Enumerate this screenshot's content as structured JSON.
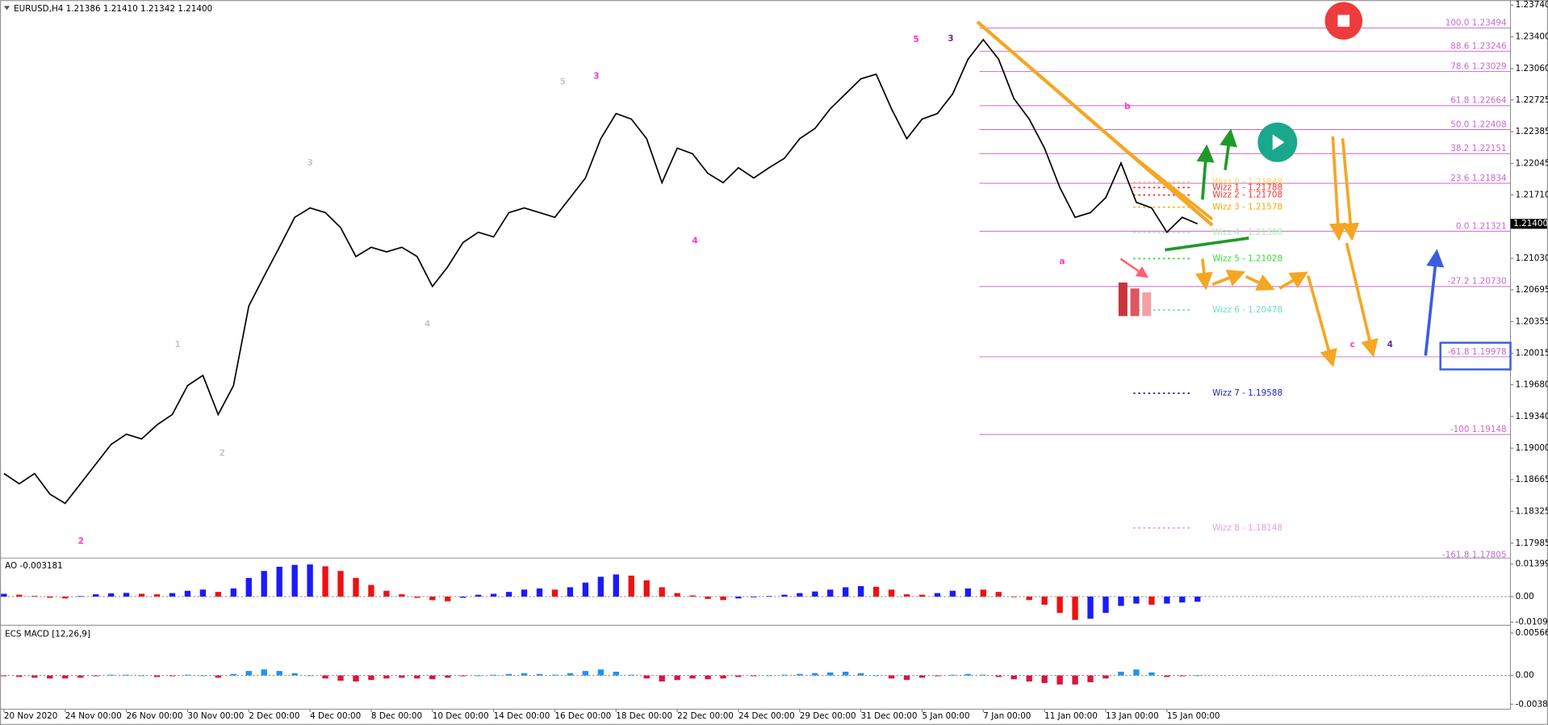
{
  "chart_data": [
    {
      "type": "line",
      "title": "EURUSD,H4  1.21386 1.21410 1.21342 1.21400",
      "categories": [
        "20 Nov 2020",
        null,
        null,
        null,
        "24 Nov 00:00",
        null,
        null,
        null,
        "26 Nov 00:00",
        null,
        null,
        null,
        "30 Nov 00:00",
        null,
        null,
        null,
        "2 Dec 00:00",
        null,
        null,
        null,
        "4 Dec 00:00",
        null,
        null,
        null,
        "8 Dec 00:00",
        null,
        null,
        null,
        "10 Dec 00:00",
        null,
        null,
        null,
        "14 Dec 00:00",
        null,
        null,
        null,
        "16 Dec 00:00",
        null,
        null,
        null,
        "18 Dec 00:00",
        null,
        null,
        null,
        "22 Dec 00:00",
        null,
        null,
        null,
        "24 Dec 00:00",
        null,
        null,
        null,
        "29 Dec 00:00",
        null,
        null,
        null,
        "31 Dec 00:00",
        null,
        null,
        null,
        "5 Jan 00:00",
        null,
        null,
        null,
        "7 Jan 00:00",
        null,
        null,
        null,
        "11 Jan 00:00",
        null,
        null,
        null,
        "13 Jan 00:00",
        null,
        null,
        null,
        "15 Jan 00:00",
        null,
        null
      ],
      "series": [
        {
          "color": "#000000",
          "values": [
            1.1873,
            1.1862,
            1.1873,
            1.1851,
            1.1841,
            1.1862,
            1.1883,
            1.1904,
            1.1915,
            1.191,
            1.1925,
            1.1936,
            1.1967,
            1.1978,
            1.1936,
            1.1967,
            1.2052,
            1.2084,
            1.2115,
            1.2147,
            1.2157,
            1.2152,
            1.2136,
            1.2105,
            1.2115,
            1.211,
            1.2115,
            1.2105,
            1.2073,
            1.2094,
            1.212,
            1.2131,
            1.2126,
            1.2152,
            1.2157,
            1.2152,
            1.2147,
            1.2168,
            1.2189,
            1.2231,
            1.2258,
            1.2252,
            1.2231,
            1.2184,
            1.2221,
            1.2215,
            1.2194,
            1.2184,
            1.22,
            1.2189,
            1.22,
            1.221,
            1.2231,
            1.2242,
            1.2263,
            1.2279,
            1.2295,
            1.23,
            1.2263,
            1.2231,
            1.2252,
            1.2258,
            1.2279,
            1.2316,
            1.2337,
            1.2316,
            1.2274,
            1.2252,
            1.2221,
            1.2179,
            1.2147,
            1.2152,
            1.2168,
            1.2205,
            1.2163,
            1.2157,
            1.2131,
            1.2147,
            1.214
          ]
        }
      ],
      "ylim": [
        1.17826,
        1.23793
      ],
      "yticks": [
        {
          "value": 1.2374,
          "label": "1.23740"
        },
        {
          "value": 1.234,
          "label": "1.23400"
        },
        {
          "value": 1.2306,
          "label": "1.23060"
        },
        {
          "value": 1.22725,
          "label": "1.22725"
        },
        {
          "value": 1.22385,
          "label": "1.22385"
        },
        {
          "value": 1.22045,
          "label": "1.22045"
        },
        {
          "value": 1.2171,
          "label": "1.21710"
        },
        {
          "value": 1.2103,
          "label": "1.21030"
        },
        {
          "value": 1.20695,
          "label": "1.20695"
        },
        {
          "value": 1.20355,
          "label": "1.20355"
        },
        {
          "value": 1.20015,
          "label": "1.20015"
        },
        {
          "value": 1.1968,
          "label": "1.19680"
        },
        {
          "value": 1.1934,
          "label": "1.19340"
        },
        {
          "value": 1.19,
          "label": "1.19000"
        },
        {
          "value": 1.18665,
          "label": "1.18665"
        },
        {
          "value": 1.18325,
          "label": "1.18325"
        },
        {
          "value": 1.17985,
          "label": "1.17985"
        }
      ],
      "last_price": {
        "value": 1.214,
        "label": "1.21400"
      },
      "fib_color": "#cc66cc",
      "fib_levels": [
        {
          "value": 1.23494,
          "label": "100.0 1.23494"
        },
        {
          "value": 1.23246,
          "label": "88.6 1.23246"
        },
        {
          "value": 1.23029,
          "label": "78.6 1.23029"
        },
        {
          "value": 1.22664,
          "label": "61.8 1.22664"
        },
        {
          "value": 1.22408,
          "label": "50.0 1.22408"
        },
        {
          "value": 1.22151,
          "label": "38.2 1.22151"
        },
        {
          "value": 1.21834,
          "label": "23.6 1.21834"
        },
        {
          "value": 1.21321,
          "label": "0.0 1.21321"
        },
        {
          "value": 1.2073,
          "label": "-27.2 1.20730"
        },
        {
          "value": 1.19978,
          "label": "-61.8 1.19978"
        },
        {
          "value": 1.19148,
          "label": "-100 1.19148"
        },
        {
          "value": 1.17805,
          "label": "-161.8 1.17805"
        }
      ],
      "levels": [
        {
          "value": 1.21848,
          "label": "Wizz 0 - 1.21848",
          "color": "#f0dc50"
        },
        {
          "value": 1.21788,
          "label": "Wizz 1 - 1.21788",
          "color": "#ff3030"
        },
        {
          "value": 1.21708,
          "label": "Wizz 2 - 1.21708",
          "color": "#ff3030"
        },
        {
          "value": 1.21578,
          "label": "Wizz 3 - 1.21578",
          "color": "#ffa500"
        },
        {
          "value": 1.21308,
          "label": "Wizz 4 - 1.21308",
          "color": "#a8eea8"
        },
        {
          "value": 1.21028,
          "label": "Wizz 5 - 1.21028",
          "color": "#33dd33"
        },
        {
          "value": 1.20478,
          "label": "Wizz 6 - 1.20478",
          "color": "#66e0c8"
        },
        {
          "value": 1.19588,
          "label": "Wizz 7 - 1.19588",
          "color": "#2222cc"
        },
        {
          "value": 1.18148,
          "label": "Wizz 8 - 1.18148",
          "color": "#e8a0e0"
        }
      ],
      "annotations": [
        {
          "text": "1",
          "color": "#c8c8c8"
        },
        {
          "text": "2",
          "color": "#c8c8c8"
        },
        {
          "text": "3",
          "color": "#c8c8c8"
        },
        {
          "text": "4",
          "color": "#c8c8c8"
        },
        {
          "text": "5",
          "color": "#c8c8c8"
        },
        {
          "text": "3",
          "color": "#ff33cc"
        },
        {
          "text": "4",
          "color": "#ff33cc"
        },
        {
          "text": "5",
          "color": "#ff33cc"
        },
        {
          "text": "3",
          "color": "#662d91"
        },
        {
          "text": "2",
          "color": "#ff33cc"
        },
        {
          "text": "a",
          "color": "#ff33cc"
        },
        {
          "text": "b",
          "color": "#ff33cc"
        },
        {
          "text": "c",
          "color": "#ff33cc"
        },
        {
          "text": "4",
          "color": "#662d91"
        }
      ]
    },
    {
      "type": "bar",
      "title": "AO -0.003181",
      "up_color": "#1a1aff",
      "down_color": "#ee1111",
      "values": [
        0.0012,
        0.0008,
        0.0003,
        -0.0005,
        -0.0008,
        0.0002,
        0.001,
        0.0014,
        0.0016,
        0.0012,
        0.001,
        0.0015,
        0.0025,
        0.003,
        0.002,
        0.0035,
        0.008,
        0.011,
        0.0128,
        0.0136,
        0.0138,
        0.013,
        0.011,
        0.008,
        0.005,
        0.0025,
        0.001,
        -0.0005,
        -0.0015,
        -0.002,
        -0.0005,
        0.0008,
        0.0012,
        0.002,
        0.003,
        0.0035,
        0.003,
        0.004,
        0.006,
        0.0085,
        0.0095,
        0.009,
        0.007,
        0.004,
        0.0015,
        0.0005,
        -0.001,
        -0.0015,
        -0.0008,
        -0.0003,
        0.0002,
        0.0008,
        0.0015,
        0.0022,
        0.003,
        0.004,
        0.0045,
        0.0042,
        0.003,
        0.001,
        0.0008,
        0.0015,
        0.0025,
        0.0035,
        0.003,
        0.002,
        0,
        -0.0015,
        -0.0035,
        -0.007,
        -0.01,
        -0.0095,
        -0.007,
        -0.004,
        -0.003,
        -0.0035,
        -0.003,
        -0.0025,
        -0.0022
      ],
      "ylim": [
        -0.01185,
        0.01612
      ],
      "yticks": [
        0.013997,
        {
          "value": 0,
          "label": "0.00"
        },
        -0.010998
      ]
    },
    {
      "type": "bar",
      "title": "ECS MACD [12,26,9]",
      "up_color": "#1e90ff",
      "down_color": "#dc143c",
      "values": [
        -0.0001,
        -0.0002,
        -0.0003,
        -0.0004,
        -0.0004,
        -0.0003,
        -0.0001,
        0.0001,
        0.0001,
        0,
        -0.0002,
        -0.0001,
        0.0001,
        0,
        -0.0003,
        0.0002,
        0.0006,
        0.0008,
        0.0006,
        0.0003,
        0,
        -0.0004,
        -0.0007,
        -0.0008,
        -0.0006,
        -0.0004,
        -0.0003,
        -0.0004,
        -0.0005,
        -0.0003,
        -0.0001,
        0,
        0.0001,
        0.0002,
        0.0003,
        0.0002,
        0.0001,
        0.0003,
        0.0006,
        0.0008,
        0.0005,
        0.0001,
        -0.0004,
        -0.0008,
        -0.0006,
        -0.0004,
        -0.0005,
        -0.0004,
        -0.0002,
        -0.0001,
        0,
        0.0001,
        0.0002,
        0.0003,
        0.0004,
        0.0005,
        0.0003,
        0,
        -0.0004,
        -0.0006,
        -0.0003,
        -0.0001,
        0.0001,
        0.0002,
        0.0001,
        -0.0002,
        -0.0005,
        -0.0008,
        -0.001,
        -0.0012,
        -0.0012,
        -0.0009,
        -0.0004,
        0.0005,
        0.0008,
        0.0004,
        -0.0002,
        -0.0001,
        0
      ],
      "ylim": [
        -0.004489,
        0.006445
      ],
      "yticks": [
        0.005665,
        {
          "value": 0,
          "label": "0.00"
        },
        -0.003839
      ]
    }
  ]
}
